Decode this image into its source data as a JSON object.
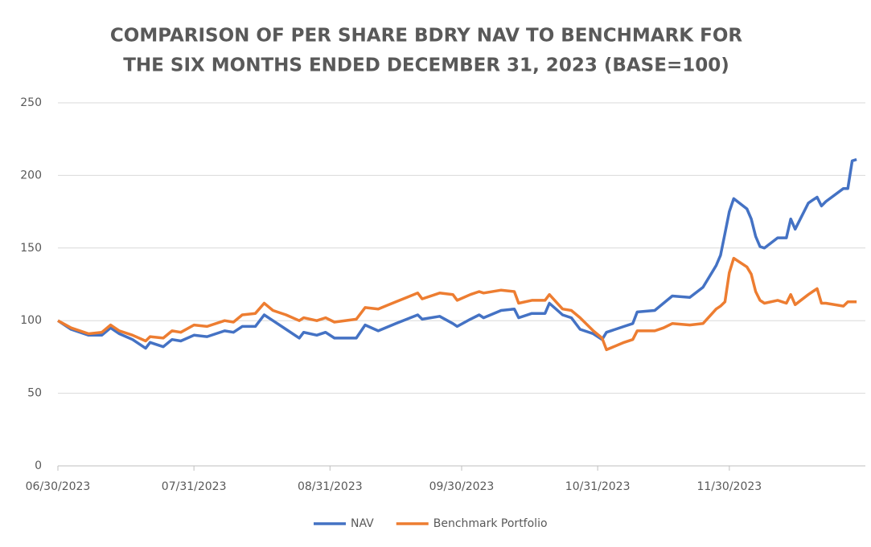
{
  "chart_data": {
    "type": "line",
    "title": [
      "COMPARISON OF PER SHARE BDRY NAV TO BENCHMARK FOR",
      "THE SIX MONTHS ENDED DECEMBER 31, 2023 (BASE=100)"
    ],
    "x": [
      "06/30/2023",
      "07/03/2023",
      "07/07/2023",
      "07/10/2023",
      "07/12/2023",
      "07/14/2023",
      "07/17/2023",
      "07/20/2023",
      "07/21/2023",
      "07/24/2023",
      "07/26/2023",
      "07/28/2023",
      "07/31/2023",
      "08/03/2023",
      "08/07/2023",
      "08/09/2023",
      "08/11/2023",
      "08/14/2023",
      "08/16/2023",
      "08/18/2023",
      "08/21/2023",
      "08/24/2023",
      "08/25/2023",
      "08/28/2023",
      "08/30/2023",
      "09/01/2023",
      "09/06/2023",
      "09/08/2023",
      "09/11/2023",
      "09/15/2023",
      "09/20/2023",
      "09/21/2023",
      "09/25/2023",
      "09/28/2023",
      "09/29/2023",
      "10/02/2023",
      "10/04/2023",
      "10/05/2023",
      "10/09/2023",
      "10/12/2023",
      "10/13/2023",
      "10/16/2023",
      "10/19/2023",
      "10/20/2023",
      "10/23/2023",
      "10/25/2023",
      "10/27/2023",
      "10/30/2023",
      "11/01/2023",
      "11/02/2023",
      "11/06/2023",
      "11/08/2023",
      "11/09/2023",
      "11/13/2023",
      "11/15/2023",
      "11/17/2023",
      "11/21/2023",
      "11/24/2023",
      "11/27/2023",
      "11/28/2023",
      "11/29/2023",
      "11/30/2023",
      "12/01/2023",
      "12/04/2023",
      "12/05/2023",
      "12/06/2023",
      "12/07/2023",
      "12/08/2023",
      "12/11/2023",
      "12/12/2023",
      "12/13/2023",
      "12/14/2023",
      "12/15/2023",
      "12/18/2023",
      "12/19/2023",
      "12/20/2023",
      "12/21/2023",
      "12/22/2023",
      "12/26/2023",
      "12/27/2023",
      "12/28/2023",
      "12/29/2023"
    ],
    "series": [
      {
        "name": "NAV",
        "color": "#4472c4",
        "values": [
          100,
          94,
          90,
          90,
          95,
          91,
          87,
          81,
          85,
          82,
          87,
          86,
          90,
          89,
          93,
          92,
          96,
          96,
          104,
          100,
          94,
          88,
          92,
          90,
          92,
          88,
          88,
          97,
          93,
          98,
          104,
          101,
          103,
          98,
          96,
          101,
          104,
          102,
          107,
          108,
          102,
          105,
          105,
          112,
          104,
          102,
          94,
          91,
          87,
          92,
          96,
          98,
          106,
          107,
          112,
          117,
          116,
          123,
          138,
          145,
          160,
          175,
          184,
          177,
          170,
          158,
          151,
          150,
          157,
          157,
          157,
          170,
          163,
          181,
          183,
          185,
          179,
          182,
          191,
          191,
          210,
          211
        ]
      },
      {
        "name": "Benchmark Portfolio",
        "color": "#ed7d31",
        "values": [
          100,
          95,
          91,
          92,
          97,
          93,
          90,
          86,
          89,
          88,
          93,
          92,
          97,
          96,
          100,
          99,
          104,
          105,
          112,
          107,
          104,
          100,
          102,
          100,
          102,
          99,
          101,
          109,
          108,
          113,
          119,
          115,
          119,
          118,
          114,
          118,
          120,
          119,
          121,
          120,
          112,
          114,
          114,
          118,
          108,
          107,
          102,
          93,
          88,
          80,
          85,
          87,
          93,
          93,
          95,
          98,
          97,
          98,
          108,
          110,
          113,
          133,
          143,
          137,
          132,
          120,
          114,
          112,
          114,
          113,
          112,
          118,
          111,
          118,
          120,
          122,
          112,
          112,
          110,
          113,
          113,
          113
        ]
      }
    ],
    "xlim": [
      "06/30/2023",
      "12/31/2023"
    ],
    "xticks": [
      "06/30/2023",
      "07/31/2023",
      "08/31/2023",
      "09/30/2023",
      "10/31/2023",
      "11/30/2023"
    ],
    "ylim": [
      0,
      250
    ],
    "yticks": [
      0,
      50,
      100,
      150,
      200,
      250
    ],
    "grid": true,
    "legend": "bottom"
  }
}
